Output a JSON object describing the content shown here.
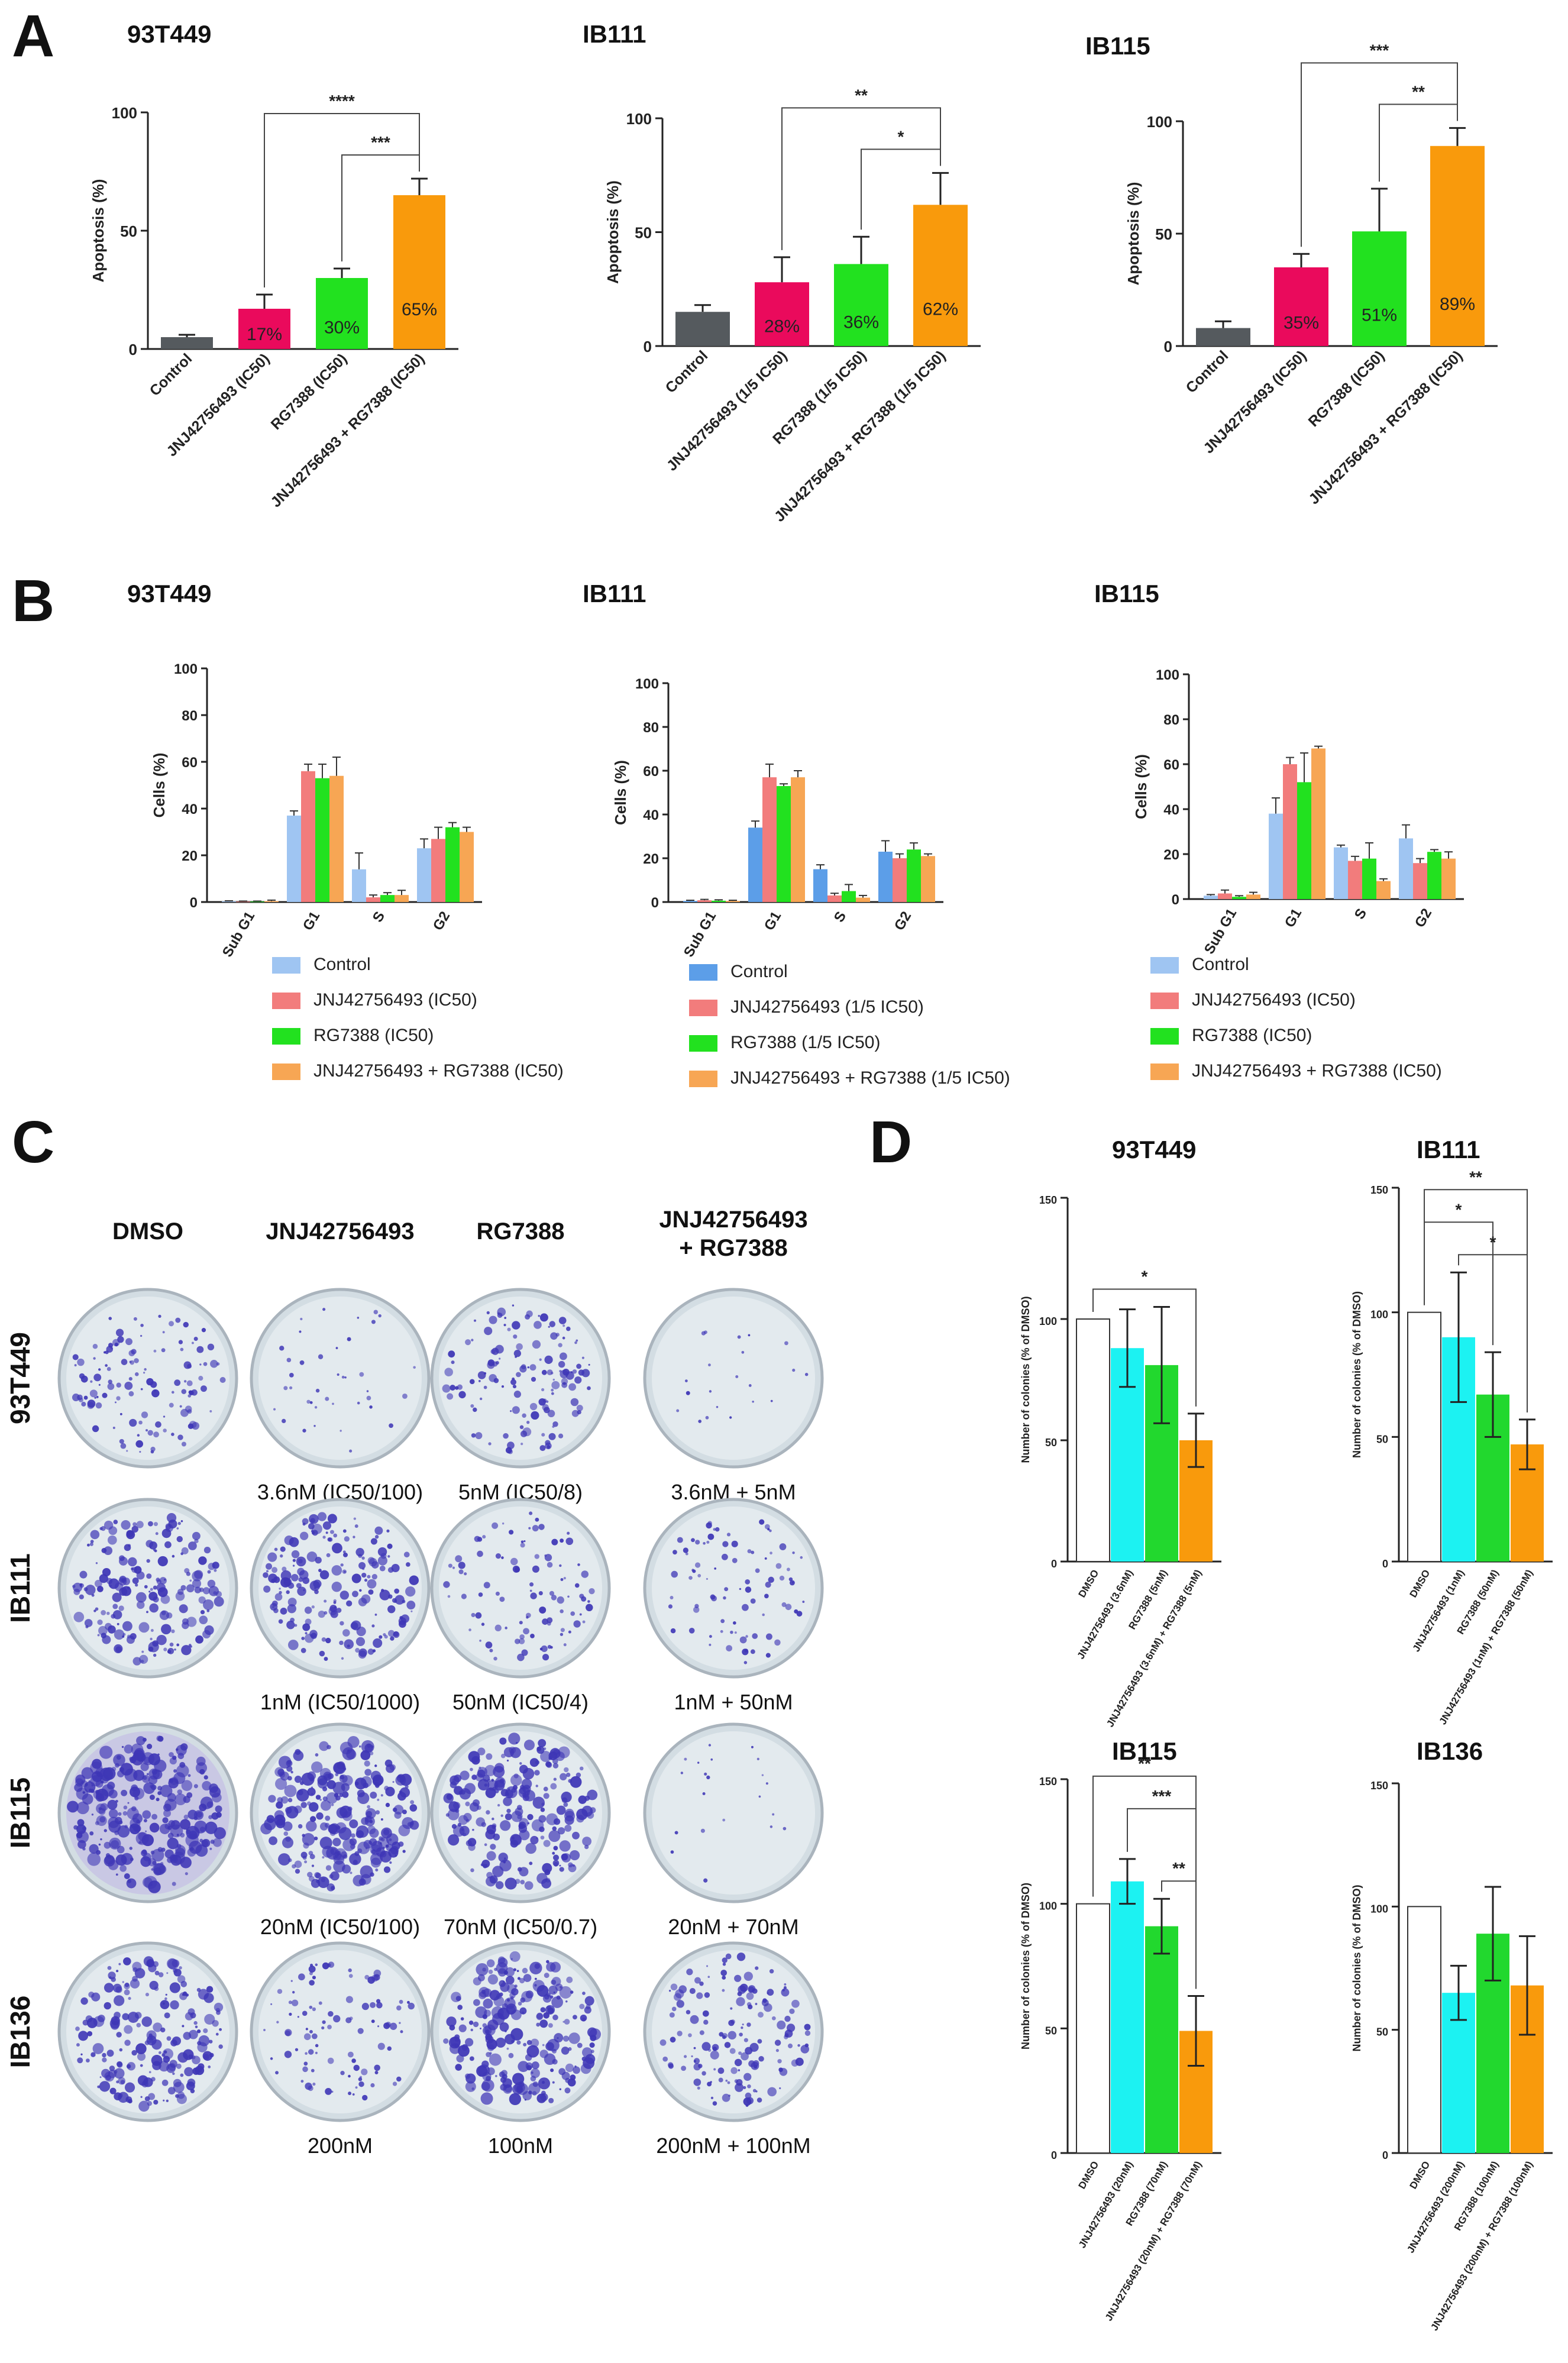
{
  "figure": {
    "panel_letters": [
      "A",
      "B",
      "C",
      "D"
    ],
    "colors": {
      "control_dark": "#555a5e",
      "magenta": "#ea0a5c",
      "green": "#22e11f",
      "orange": "#f99a0c",
      "light_blue": "#9fc5f2",
      "blue": "#5c9ee8",
      "salmon": "#f27c7c",
      "light_orange": "#f7a654",
      "cyan": "#1cf2f2",
      "dark_green": "#22d82e",
      "white": "#ffffff",
      "plate_stain": "#3e36b6"
    }
  },
  "chart_data": [
    {
      "id": "A1",
      "panel": "A",
      "type": "bar",
      "title": "93T449",
      "ylabel": "Apoptosis (%)",
      "xlabel": "",
      "ylim": [
        0,
        100
      ],
      "yticks": [
        0,
        50,
        100
      ],
      "categories": [
        "Control",
        "JNJ42756493 (IC50)",
        "RG7388 (IC50)",
        "JNJ42756493 + RG7388 (IC50)"
      ],
      "values": [
        5,
        17,
        30,
        65
      ],
      "errors": [
        1,
        6,
        4,
        7
      ],
      "bar_labels": [
        "",
        "17%",
        "30%",
        "65%"
      ],
      "colors": [
        "#555a5e",
        "#ea0a5c",
        "#22e11f",
        "#f99a0c"
      ],
      "significance": [
        {
          "from": 1,
          "to": 3,
          "label": "****"
        },
        {
          "from": 2,
          "to": 3,
          "label": "***"
        }
      ]
    },
    {
      "id": "A2",
      "panel": "A",
      "type": "bar",
      "title": "IB111",
      "ylabel": "Apoptosis (%)",
      "xlabel": "",
      "ylim": [
        0,
        100
      ],
      "yticks": [
        0,
        50,
        100
      ],
      "categories": [
        "Control",
        "JNJ42756493 (1/5 IC50)",
        "RG7388 (1/5 IC50)",
        "JNJ42756493 + RG7388 (1/5 IC50)"
      ],
      "values": [
        15,
        28,
        36,
        62
      ],
      "errors": [
        3,
        11,
        12,
        14
      ],
      "bar_labels": [
        "",
        "28%",
        "36%",
        "62%"
      ],
      "colors": [
        "#555a5e",
        "#ea0a5c",
        "#22e11f",
        "#f99a0c"
      ],
      "significance": [
        {
          "from": 1,
          "to": 3,
          "label": "**"
        },
        {
          "from": 2,
          "to": 3,
          "label": "*"
        }
      ]
    },
    {
      "id": "A3",
      "panel": "A",
      "type": "bar",
      "title": "IB115",
      "ylabel": "Apoptosis (%)",
      "xlabel": "",
      "ylim": [
        0,
        100
      ],
      "yticks": [
        0,
        50,
        100
      ],
      "categories": [
        "Control",
        "JNJ42756493 (IC50)",
        "RG7388 (IC50)",
        "JNJ42756493 + RG7388 (IC50)"
      ],
      "values": [
        8,
        35,
        51,
        89
      ],
      "errors": [
        3,
        6,
        19,
        8
      ],
      "bar_labels": [
        "",
        "35%",
        "51%",
        "89%"
      ],
      "colors": [
        "#555a5e",
        "#ea0a5c",
        "#22e11f",
        "#f99a0c"
      ],
      "significance": [
        {
          "from": 1,
          "to": 3,
          "label": "***"
        },
        {
          "from": 2,
          "to": 3,
          "label": "**"
        }
      ]
    },
    {
      "id": "B1",
      "panel": "B",
      "type": "bar",
      "title": "93T449",
      "ylabel": "Cells (%)",
      "xlabel": "",
      "ylim": [
        0,
        100
      ],
      "yticks": [
        0,
        20,
        40,
        60,
        80,
        100
      ],
      "categories": [
        "Sub G1",
        "G1",
        "S",
        "G2"
      ],
      "series": [
        {
          "name": "Control",
          "color": "#9fc5f2",
          "values": [
            0.3,
            37,
            14,
            23
          ],
          "errors": [
            0.2,
            2,
            7,
            4
          ]
        },
        {
          "name": "JNJ42756493 (IC50)",
          "color": "#f27c7c",
          "values": [
            0.2,
            56,
            2,
            27
          ],
          "errors": [
            0.2,
            3,
            1,
            5
          ]
        },
        {
          "name": "RG7388 (IC50)",
          "color": "#22e11f",
          "values": [
            0.2,
            53,
            3,
            32
          ],
          "errors": [
            0.2,
            6,
            1,
            2
          ]
        },
        {
          "name": "JNJ42756493 + RG7388 (IC50)",
          "color": "#f7a654",
          "values": [
            0.4,
            54,
            3,
            30
          ],
          "errors": [
            0.4,
            8,
            2,
            2
          ]
        }
      ]
    },
    {
      "id": "B2",
      "panel": "B",
      "type": "bar",
      "title": "IB111",
      "ylabel": "Cells (%)",
      "xlabel": "",
      "ylim": [
        0,
        100
      ],
      "yticks": [
        0,
        20,
        40,
        60,
        80,
        100
      ],
      "categories": [
        "Sub G1",
        "G1",
        "S",
        "G2"
      ],
      "series": [
        {
          "name": "Control",
          "color": "#5c9ee8",
          "values": [
            0.5,
            34,
            15,
            23
          ],
          "errors": [
            0.3,
            3,
            2,
            5
          ]
        },
        {
          "name": "JNJ42756493 (1/5 IC50)",
          "color": "#f27c7c",
          "values": [
            0.8,
            57,
            3,
            20
          ],
          "errors": [
            0.4,
            6,
            1,
            2
          ]
        },
        {
          "name": "RG7388 (1/5 IC50)",
          "color": "#22e11f",
          "values": [
            0.6,
            53,
            5,
            24
          ],
          "errors": [
            0.4,
            1,
            3,
            3
          ]
        },
        {
          "name": "JNJ42756493 + RG7388 (1/5 IC50)",
          "color": "#f7a654",
          "values": [
            0.5,
            57,
            2,
            21
          ],
          "errors": [
            0.3,
            3,
            1,
            1
          ]
        }
      ]
    },
    {
      "id": "B3",
      "panel": "B",
      "type": "bar",
      "title": "IB115",
      "ylabel": "Cells (%)",
      "xlabel": "",
      "ylim": [
        0,
        100
      ],
      "yticks": [
        0,
        20,
        40,
        60,
        80,
        100
      ],
      "categories": [
        "Sub G1",
        "G1",
        "S",
        "G2"
      ],
      "series": [
        {
          "name": "Control",
          "color": "#9fc5f2",
          "values": [
            1.5,
            38,
            23,
            27
          ],
          "errors": [
            0.5,
            7,
            1,
            6
          ]
        },
        {
          "name": "JNJ42756493 (IC50)",
          "color": "#f27c7c",
          "values": [
            2.5,
            60,
            17,
            16
          ],
          "errors": [
            1.5,
            3,
            2,
            2
          ]
        },
        {
          "name": "RG7388 (IC50)",
          "color": "#22e11f",
          "values": [
            1,
            52,
            18,
            21
          ],
          "errors": [
            0.5,
            13,
            7,
            1
          ]
        },
        {
          "name": "JNJ42756493 + RG7388 (IC50)",
          "color": "#f7a654",
          "values": [
            2,
            67,
            8,
            18
          ],
          "errors": [
            1,
            1,
            1,
            3
          ]
        }
      ]
    },
    {
      "id": "D1",
      "panel": "D",
      "type": "bar",
      "title": "93T449",
      "ylabel": "Number of colonies (% of DMSO)",
      "xlabel": "",
      "ylim": [
        0,
        150
      ],
      "yticks": [
        0,
        50,
        100,
        150
      ],
      "categories": [
        "DMSO",
        "JNJ42756493 (3.6nM)",
        "RG7388 (5nM)",
        "JNJ42756493 (3.6nM) + RG7388 (5nM)"
      ],
      "values": [
        100,
        88,
        81,
        50
      ],
      "errors": [
        0,
        16,
        24,
        11
      ],
      "colors": [
        "#ffffff",
        "#1cf2f2",
        "#22d82e",
        "#f99a0c"
      ],
      "significance": [
        {
          "from": 0,
          "to": 3,
          "label": "*"
        }
      ]
    },
    {
      "id": "D2",
      "panel": "D",
      "type": "bar",
      "title": "IB111",
      "ylabel": "Number of colonies (% of DMSO)",
      "xlabel": "",
      "ylim": [
        0,
        150
      ],
      "yticks": [
        0,
        50,
        100,
        150
      ],
      "categories": [
        "DMSO",
        "JNJ42756493 (1nM)",
        "RG7388 (50nM)",
        "JNJ42756493 (1nM) + RG7388 (50nM)"
      ],
      "values": [
        100,
        90,
        67,
        47
      ],
      "errors": [
        0,
        26,
        17,
        10
      ],
      "colors": [
        "#ffffff",
        "#1cf2f2",
        "#22d82e",
        "#f99a0c"
      ],
      "significance": [
        {
          "from": 0,
          "to": 3,
          "label": "**"
        },
        {
          "from": 0,
          "to": 2,
          "label": "*"
        },
        {
          "from": 1,
          "to": 3,
          "label": "*"
        }
      ]
    },
    {
      "id": "D3",
      "panel": "D",
      "type": "bar",
      "title": "IB115",
      "ylabel": "Number of colonies (% of DMSO)",
      "xlabel": "",
      "ylim": [
        0,
        150
      ],
      "yticks": [
        0,
        50,
        100,
        150
      ],
      "categories": [
        "DMSO",
        "JNJ42756493 (20nM)",
        "RG7388 (70nM)",
        "JNJ42756493 (20nM) + RG7388 (70nM)"
      ],
      "values": [
        100,
        109,
        91,
        49
      ],
      "errors": [
        0,
        9,
        11,
        14
      ],
      "colors": [
        "#ffffff",
        "#1cf2f2",
        "#22d82e",
        "#f99a0c"
      ],
      "significance": [
        {
          "from": 0,
          "to": 3,
          "label": "**"
        },
        {
          "from": 1,
          "to": 3,
          "label": "***"
        },
        {
          "from": 2,
          "to": 3,
          "label": "**"
        }
      ]
    },
    {
      "id": "D4",
      "panel": "D",
      "type": "bar",
      "title": "IB136",
      "ylabel": "Number of colonies (% of DMSO)",
      "xlabel": "",
      "ylim": [
        0,
        150
      ],
      "yticks": [
        0,
        50,
        100,
        150
      ],
      "categories": [
        "DMSO",
        "JNJ42756493 (200nM)",
        "RG7388 (100nM)",
        "JNJ42756493 (200nM) + RG7388 (100nM)"
      ],
      "values": [
        100,
        65,
        89,
        68
      ],
      "errors": [
        0,
        11,
        19,
        20
      ],
      "colors": [
        "#ffffff",
        "#1cf2f2",
        "#22d82e",
        "#f99a0c"
      ],
      "significance": []
    }
  ],
  "panel_c": {
    "column_headers": [
      "DMSO",
      "JNJ42756493",
      "RG7388",
      "JNJ42756493\n+ RG7388"
    ],
    "rows": [
      {
        "cell_line": "93T449",
        "density": [
          0.45,
          0.12,
          0.5,
          0.05
        ],
        "labels": [
          "",
          "3.6nM (IC50/100)",
          "5nM (IC50/8)",
          "3.6nM + 5nM"
        ]
      },
      {
        "cell_line": "IB111",
        "density": [
          0.7,
          0.7,
          0.35,
          0.3
        ],
        "labels": [
          "",
          "1nM (IC50/1000)",
          "50nM (IC50/4)",
          "1nM + 50nM"
        ]
      },
      {
        "cell_line": "IB115",
        "density": [
          1.0,
          0.95,
          0.85,
          0.05
        ],
        "labels": [
          "",
          "20nM (IC50/100)",
          "70nM (IC50/0.7)",
          "20nM + 70nM"
        ]
      },
      {
        "cell_line": "IB136",
        "density": [
          0.75,
          0.35,
          0.9,
          0.55
        ],
        "labels": [
          "",
          "200nM",
          "100nM",
          "200nM + 100nM"
        ]
      }
    ]
  }
}
